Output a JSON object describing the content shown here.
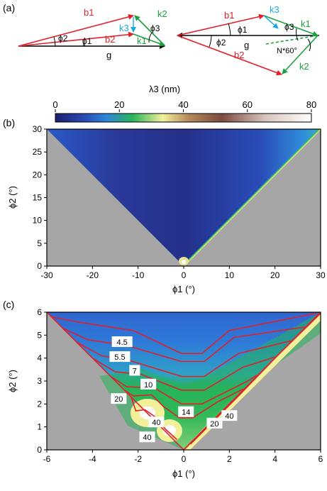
{
  "panel_labels": {
    "a": "(a)",
    "b": "(b)",
    "c": "(c)"
  },
  "schematic": {
    "left": {
      "vectors": [
        "b1",
        "b2",
        "g",
        "k1",
        "k2",
        "k3"
      ],
      "angles": [
        "ϕ2",
        "ϕ1",
        "ϕ3"
      ]
    },
    "right": {
      "vectors": [
        "b1",
        "b2",
        "g",
        "k1",
        "k2",
        "k3"
      ],
      "angles": [
        "ϕ1",
        "ϕ2",
        "ϕ3"
      ],
      "annotation": "N*60°"
    },
    "colors": {
      "b": "#e0202a",
      "k": "#1aa03c",
      "k3": "#18a8e0",
      "g": "#000000"
    }
  },
  "colorbar": {
    "title": "λ3 (nm)",
    "ticks": [
      0,
      20,
      40,
      60,
      80
    ],
    "range": [
      0,
      80
    ],
    "colormap": [
      "#1b1f6e",
      "#2a6fd6",
      "#27b35a",
      "#f5f2a8",
      "#9a6b4e",
      "#e9dcd8",
      "#ffffff"
    ]
  },
  "chart_data": [
    {
      "panel": "b",
      "type": "heatmap",
      "title": "",
      "xlabel": "ϕ1 (°)",
      "ylabel": "ϕ2 (°)",
      "xlim": [
        -30,
        30
      ],
      "ylim": [
        0,
        30
      ],
      "xticks": [
        -30,
        -20,
        -10,
        0,
        10,
        20,
        30
      ],
      "yticks": [
        0,
        5,
        10,
        15,
        20,
        25,
        30
      ],
      "valid_region": "ϕ2 > |ϕ1|",
      "invalid_color": "#a6a6a6"
    },
    {
      "panel": "c",
      "type": "heatmap",
      "title": "",
      "xlabel": "ϕ1 (°)",
      "ylabel": "ϕ2 (°)",
      "xlim": [
        -6,
        6
      ],
      "ylim": [
        0,
        6
      ],
      "xticks": [
        -6,
        -4,
        -2,
        0,
        2,
        4,
        6
      ],
      "yticks": [
        0,
        1,
        2,
        3,
        4,
        5,
        6
      ],
      "valid_region": "ϕ2 > |ϕ1|",
      "invalid_color": "#a6a6a6",
      "contour_color": "#e0202a",
      "contour_labels": [
        {
          "text": "4.5",
          "x": -2.7,
          "y": 4.7
        },
        {
          "text": "5.5",
          "x": -2.8,
          "y": 4.05
        },
        {
          "text": "7",
          "x": -2.15,
          "y": 3.45
        },
        {
          "text": "10",
          "x": -1.55,
          "y": 2.85
        },
        {
          "text": "20",
          "x": -2.85,
          "y": 2.22
        },
        {
          "text": "40",
          "x": -1.2,
          "y": 1.2
        },
        {
          "text": "40",
          "x": -1.6,
          "y": 0.55
        },
        {
          "text": "14",
          "x": 0.1,
          "y": 1.65
        },
        {
          "text": "20",
          "x": 1.35,
          "y": 1.15
        },
        {
          "text": "40",
          "x": 2.0,
          "y": 1.48
        }
      ]
    }
  ]
}
